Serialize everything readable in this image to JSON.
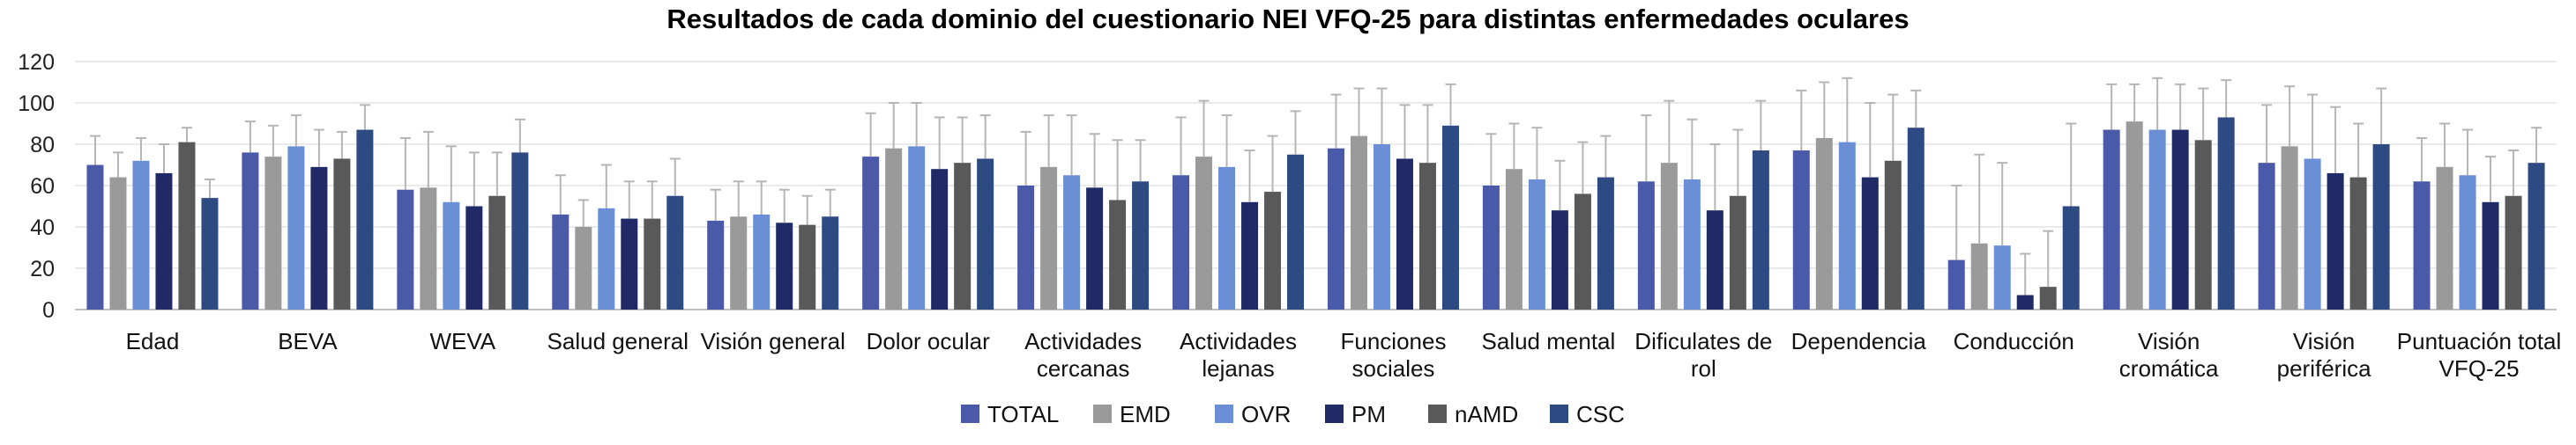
{
  "chart_data": {
    "type": "bar",
    "title": "Resultados de cada dominio del cuestionario NEI VFQ-25 para distintas enfermedades oculares",
    "xlabel": "",
    "ylabel": "",
    "ylim": [
      0,
      120
    ],
    "yticks": [
      0,
      20,
      40,
      60,
      80,
      100,
      120
    ],
    "grid": true,
    "error_bars": true,
    "legend_position": "bottom",
    "categories": [
      [
        "Edad"
      ],
      [
        "BEVA"
      ],
      [
        "WEVA"
      ],
      [
        "Salud general"
      ],
      [
        "Visión general"
      ],
      [
        "Dolor ocular"
      ],
      [
        "Actividades",
        "cercanas"
      ],
      [
        "Actividades",
        "lejanas"
      ],
      [
        "Funciones",
        "sociales"
      ],
      [
        "Salud mental"
      ],
      [
        "Dificulates de",
        "rol"
      ],
      [
        "Dependencia"
      ],
      [
        "Conducción"
      ],
      [
        "Visión",
        "cromática"
      ],
      [
        "Visión",
        "periférica"
      ],
      [
        "Puntuación total",
        "VFQ-25"
      ]
    ],
    "series": [
      {
        "name": "TOTAL",
        "color": "#4a5aa8",
        "values": [
          70,
          76,
          58,
          46,
          43,
          74,
          60,
          65,
          78,
          60,
          62,
          77,
          24,
          87,
          71,
          62
        ],
        "errors": [
          14,
          15,
          25,
          19,
          15,
          21,
          26,
          28,
          26,
          25,
          32,
          29,
          36,
          22,
          28,
          21
        ]
      },
      {
        "name": "EMD",
        "color": "#9a9a9a",
        "values": [
          64,
          74,
          59,
          40,
          45,
          78,
          69,
          74,
          84,
          68,
          71,
          83,
          32,
          91,
          79,
          69
        ],
        "errors": [
          12,
          15,
          27,
          13,
          17,
          22,
          25,
          27,
          23,
          22,
          30,
          27,
          43,
          18,
          29,
          21
        ]
      },
      {
        "name": "OVR",
        "color": "#6a8fd6",
        "values": [
          72,
          79,
          52,
          49,
          46,
          79,
          65,
          69,
          80,
          63,
          63,
          81,
          31,
          87,
          73,
          65
        ],
        "errors": [
          11,
          15,
          27,
          21,
          16,
          21,
          29,
          25,
          27,
          25,
          29,
          31,
          40,
          25,
          31,
          22
        ]
      },
      {
        "name": "PM",
        "color": "#1f2a66",
        "values": [
          66,
          69,
          50,
          44,
          42,
          68,
          59,
          52,
          73,
          48,
          48,
          64,
          7,
          87,
          66,
          52
        ],
        "errors": [
          14,
          18,
          26,
          18,
          16,
          25,
          26,
          25,
          26,
          24,
          32,
          36,
          20,
          22,
          32,
          22
        ]
      },
      {
        "name": "nAMD",
        "color": "#595959",
        "values": [
          81,
          73,
          55,
          44,
          41,
          71,
          53,
          57,
          71,
          56,
          55,
          72,
          11,
          82,
          64,
          55
        ],
        "errors": [
          7,
          13,
          21,
          18,
          14,
          22,
          29,
          27,
          28,
          25,
          32,
          32,
          27,
          25,
          26,
          22
        ]
      },
      {
        "name": "CSC",
        "color": "#2e4a82",
        "values": [
          54,
          87,
          76,
          55,
          45,
          73,
          62,
          75,
          89,
          64,
          77,
          88,
          50,
          93,
          80,
          71
        ],
        "errors": [
          9,
          12,
          16,
          18,
          13,
          21,
          20,
          21,
          20,
          20,
          24,
          18,
          40,
          18,
          27,
          17
        ]
      }
    ]
  }
}
